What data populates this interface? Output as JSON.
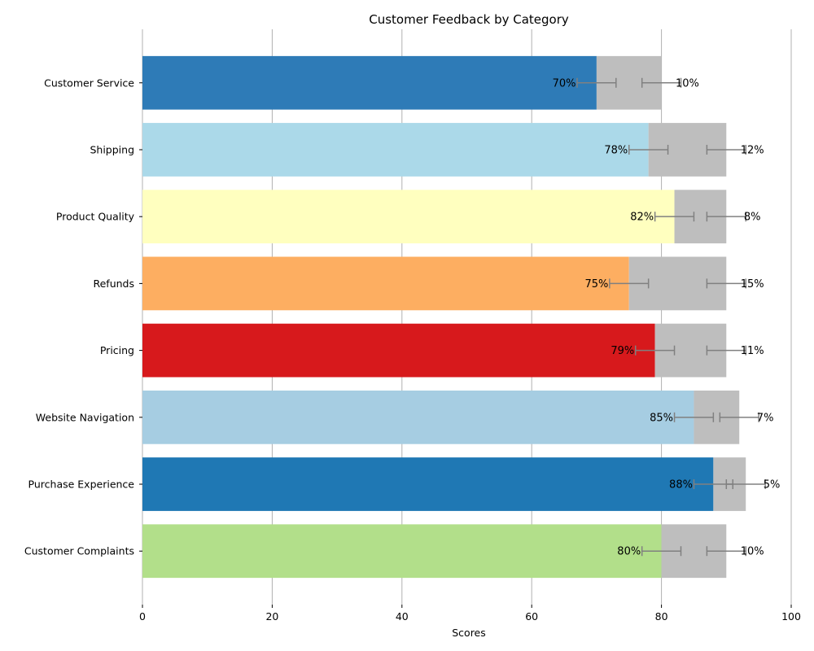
{
  "chart_data": {
    "type": "bar",
    "orientation": "horizontal",
    "stacked": true,
    "title": "Customer Feedback by Category",
    "xlabel": "Scores",
    "ylabel": "",
    "xlim": [
      0,
      100
    ],
    "x_ticks": [
      "0",
      "20",
      "40",
      "60",
      "80",
      "100"
    ],
    "grid": "vertical",
    "legend": "none",
    "categories": [
      "Customer Service",
      "Shipping",
      "Product Quality",
      "Refunds",
      "Pricing",
      "Website Navigation",
      "Purchase Experience",
      "Customer Complaints"
    ],
    "series": [
      {
        "values": [
          70,
          78,
          82,
          75,
          79,
          85,
          88,
          80
        ],
        "labels": [
          "70%",
          "78%",
          "82%",
          "75%",
          "79%",
          "85%",
          "88%",
          "80%"
        ],
        "colors": [
          "#2e7bb7",
          "#abd9e9",
          "#ffffbf",
          "#fdae61",
          "#d7191c",
          "#a6cde2",
          "#1f78b4",
          "#b2df8a"
        ],
        "error": 3
      },
      {
        "values": [
          10,
          12,
          8,
          15,
          11,
          7,
          5,
          10
        ],
        "labels": [
          "10%",
          "12%",
          "8%",
          "15%",
          "11%",
          "7%",
          "5%",
          "10%"
        ],
        "color": "#bebebe",
        "error": 3
      }
    ]
  }
}
